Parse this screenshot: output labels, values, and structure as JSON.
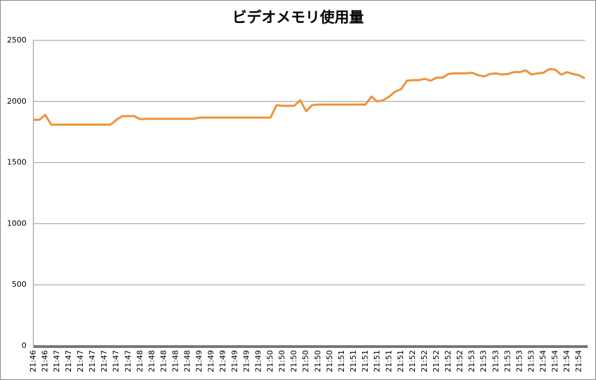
{
  "chart_data": {
    "type": "line",
    "title": "ビデオメモリ使用量",
    "categories": [
      "21:46",
      null,
      "21:46",
      null,
      "21:47",
      null,
      "21:47",
      null,
      "21:47",
      null,
      "21:47",
      null,
      "21:47",
      null,
      "21:47",
      null,
      "21:47",
      null,
      "21:48",
      null,
      "21:48",
      null,
      "21:48",
      null,
      "21:48",
      null,
      "21:48",
      null,
      "21:49",
      null,
      "21:49",
      null,
      "21:49",
      null,
      "21:49",
      null,
      "21:49",
      null,
      "21:49",
      null,
      "21:50",
      null,
      "21:50",
      null,
      "21:50",
      null,
      "21:50",
      null,
      "21:50",
      null,
      "21:50",
      null,
      "21:51",
      null,
      "21:51",
      null,
      "21:51",
      null,
      "21:51",
      null,
      "21:51",
      null,
      "21:51",
      null,
      "21:52",
      null,
      "21:52",
      null,
      "21:52",
      null,
      "21:52",
      null,
      "21:52",
      null,
      "21:53",
      null,
      "21:53",
      null,
      "21:53",
      null,
      "21:53",
      null,
      "21:53",
      null,
      "21:53",
      null,
      "21:54",
      null,
      "21:54",
      null,
      "21:54",
      null,
      "21:54",
      null
    ],
    "series": [
      {
        "name": "ビデオメモリ使用量",
        "color": "#f0913a",
        "values": [
          1850,
          1850,
          1890,
          1810,
          1810,
          1810,
          1810,
          1810,
          1810,
          1810,
          1810,
          1810,
          1810,
          1810,
          1850,
          1880,
          1880,
          1880,
          1855,
          1858,
          1858,
          1858,
          1858,
          1858,
          1858,
          1858,
          1858,
          1858,
          1868,
          1868,
          1868,
          1868,
          1868,
          1868,
          1868,
          1868,
          1868,
          1868,
          1868,
          1868,
          1868,
          1970,
          1965,
          1965,
          1965,
          2010,
          1920,
          1970,
          1975,
          1975,
          1975,
          1975,
          1975,
          1975,
          1975,
          1975,
          1975,
          2040,
          2000,
          2010,
          2040,
          2080,
          2100,
          2170,
          2175,
          2175,
          2185,
          2170,
          2195,
          2195,
          2225,
          2230,
          2230,
          2230,
          2235,
          2215,
          2205,
          2225,
          2230,
          2220,
          2225,
          2240,
          2240,
          2255,
          2220,
          2230,
          2235,
          2265,
          2260,
          2220,
          2240,
          2225,
          2215,
          2190
        ]
      }
    ],
    "ylim": [
      0,
      2500
    ],
    "yticks": [
      0,
      500,
      1000,
      1500,
      2000,
      2500
    ],
    "grid": true
  }
}
